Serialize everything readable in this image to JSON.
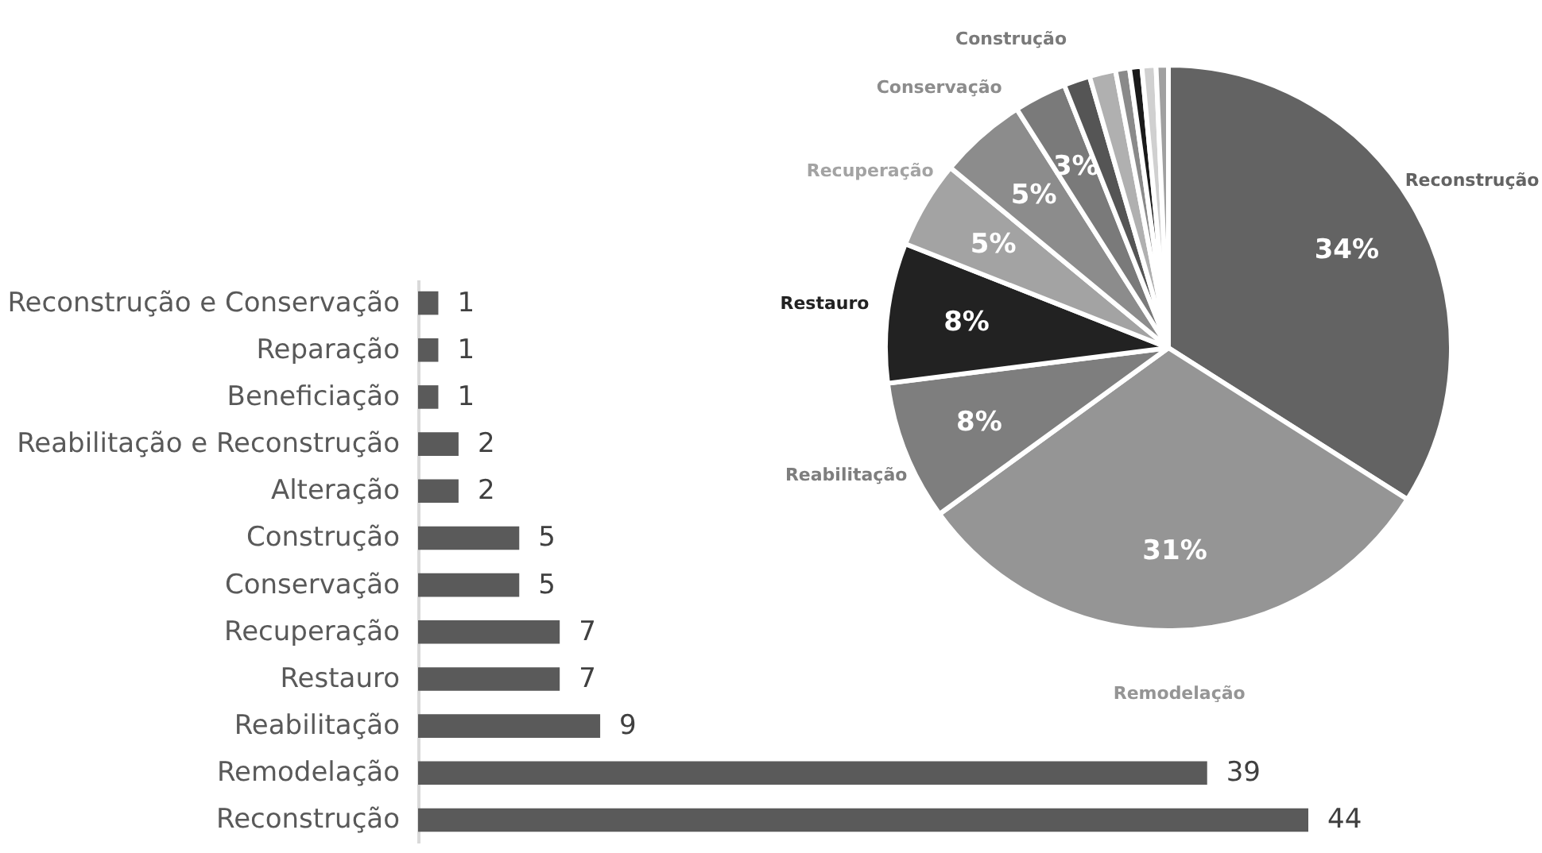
{
  "chart_data": [
    {
      "type": "bar",
      "orientation": "horizontal",
      "categories": [
        "Reconstrução e Conservação",
        "Reparação",
        "Beneficiação",
        "Reabilitação e Reconstrução",
        "Alteração",
        "Construção",
        "Conservação",
        "Recuperação",
        "Restauro",
        "Reabilitação",
        "Remodelação",
        "Reconstrução"
      ],
      "values": [
        1,
        1,
        1,
        2,
        2,
        5,
        5,
        7,
        7,
        9,
        39,
        44
      ],
      "color": "#5a5a5a",
      "data_labels": true
    },
    {
      "type": "pie",
      "categories": [
        "Reconstrução",
        "Remodelação",
        "Reabilitação",
        "Restauro",
        "Recuperação",
        "Conservação",
        "Construção",
        null,
        null,
        null,
        null,
        null,
        null
      ],
      "values": [
        34,
        31,
        8,
        8,
        5,
        5,
        3,
        1.5,
        1.5,
        0.8,
        0.7,
        0.8,
        0.7
      ],
      "colors": [
        "#636363",
        "#959595",
        "#7e7e7e",
        "#222222",
        "#a3a3a3",
        "#8c8c8c",
        "#7a7a7a",
        "#555555",
        "#b0b0b0",
        "#8a8a8a",
        "#1a1a1a",
        "#d0d0d0",
        "#a0a0a0"
      ],
      "value_labels": [
        "34%",
        "31%",
        "8%",
        "8%",
        "5%",
        "5%",
        "3%",
        null,
        null,
        null,
        null,
        null,
        null
      ]
    }
  ]
}
